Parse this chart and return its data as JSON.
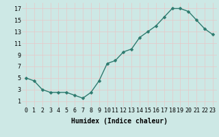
{
  "x": [
    0,
    1,
    2,
    3,
    4,
    5,
    6,
    7,
    8,
    9,
    10,
    11,
    12,
    13,
    14,
    15,
    16,
    17,
    18,
    19,
    20,
    21,
    22,
    23
  ],
  "y": [
    5,
    4.5,
    3,
    2.5,
    2.5,
    2.5,
    2,
    1.5,
    2.5,
    4.5,
    7.5,
    8,
    9.5,
    10,
    12,
    13,
    14,
    15.5,
    17,
    17,
    16.5,
    15,
    13.5,
    12.5
  ],
  "line_color": "#2d7a6e",
  "marker_color": "#2d7a6e",
  "bg_color": "#cde8e5",
  "grid_color": "#b0d0cc",
  "xlabel": "Humidex (Indice chaleur)",
  "xlim": [
    -0.5,
    23.5
  ],
  "ylim": [
    0,
    18
  ],
  "xticks": [
    0,
    1,
    2,
    3,
    4,
    5,
    6,
    7,
    8,
    9,
    10,
    11,
    12,
    13,
    14,
    15,
    16,
    17,
    18,
    19,
    20,
    21,
    22,
    23
  ],
  "yticks": [
    1,
    3,
    5,
    7,
    9,
    11,
    13,
    15,
    17
  ],
  "xlabel_fontsize": 7,
  "tick_fontsize": 6,
  "line_width": 1.0,
  "marker_size": 2.5
}
